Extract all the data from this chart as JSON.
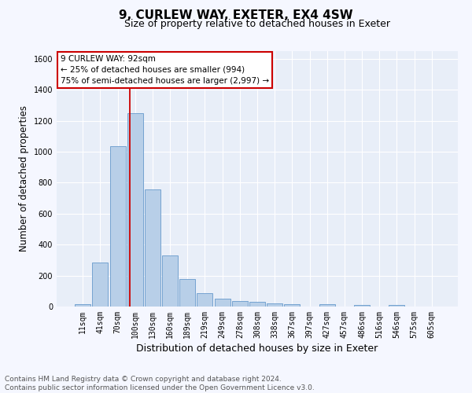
{
  "title": "9, CURLEW WAY, EXETER, EX4 4SW",
  "subtitle": "Size of property relative to detached houses in Exeter",
  "xlabel": "Distribution of detached houses by size in Exeter",
  "ylabel": "Number of detached properties",
  "categories": [
    "11sqm",
    "41sqm",
    "70sqm",
    "100sqm",
    "130sqm",
    "160sqm",
    "189sqm",
    "219sqm",
    "249sqm",
    "278sqm",
    "308sqm",
    "338sqm",
    "367sqm",
    "397sqm",
    "427sqm",
    "457sqm",
    "486sqm",
    "516sqm",
    "546sqm",
    "575sqm",
    "605sqm"
  ],
  "values": [
    15,
    285,
    1035,
    1250,
    755,
    330,
    180,
    88,
    52,
    38,
    28,
    20,
    15,
    0,
    13,
    0,
    10,
    0,
    12,
    0,
    0
  ],
  "bar_color": "#b8cfe8",
  "bar_edge_color": "#6699cc",
  "property_line_x": 2.68,
  "property_line_color": "#cc0000",
  "annotation_line1": "9 CURLEW WAY: 92sqm",
  "annotation_line2": "← 25% of detached houses are smaller (994)",
  "annotation_line3": "75% of semi-detached houses are larger (2,997) →",
  "annotation_box_facecolor": "#ffffff",
  "annotation_box_edgecolor": "#cc0000",
  "ylim": [
    0,
    1650
  ],
  "yticks": [
    0,
    200,
    400,
    600,
    800,
    1000,
    1200,
    1400,
    1600
  ],
  "footer_line1": "Contains HM Land Registry data © Crown copyright and database right 2024.",
  "footer_line2": "Contains public sector information licensed under the Open Government Licence v3.0.",
  "plot_bg_color": "#e8eef8",
  "fig_bg_color": "#f5f7ff",
  "grid_color": "#ffffff",
  "title_fontsize": 11,
  "subtitle_fontsize": 9,
  "axis_label_fontsize": 8.5,
  "tick_fontsize": 7,
  "annotation_fontsize": 7.5,
  "footer_fontsize": 6.5
}
